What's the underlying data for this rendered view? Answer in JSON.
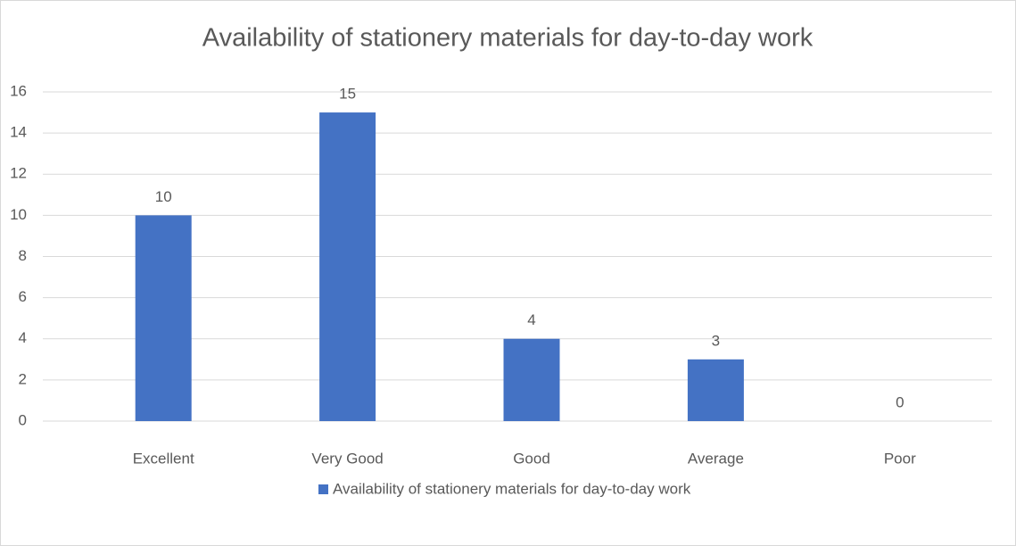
{
  "chart_data": {
    "type": "bar",
    "title": "Availability of stationery materials for day-to-day work",
    "categories": [
      "Excellent",
      "Very Good",
      "Good",
      "Average",
      "Poor"
    ],
    "series": [
      {
        "name": "Availability of stationery materials for day-to-day work",
        "color": "#4472c4",
        "values": [
          10,
          15,
          4,
          3,
          0
        ]
      }
    ],
    "ylim": [
      0,
      16
    ],
    "yticks": [
      0,
      2,
      4,
      6,
      8,
      10,
      12,
      14,
      16
    ],
    "grid": true,
    "legend": "bottom",
    "data_labels": true
  }
}
